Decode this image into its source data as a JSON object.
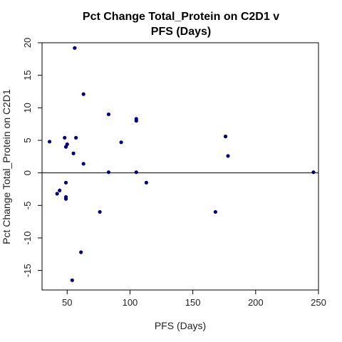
{
  "chart_data": {
    "type": "scatter",
    "title_lines": [
      "Pct Change Total_Protein on C2D1 v",
      "PFS (Days)"
    ],
    "xlabel": "PFS (Days)",
    "ylabel": "Pct Change Total_Protein on C2D1",
    "xlim": [
      30,
      250
    ],
    "ylim": [
      -18,
      20
    ],
    "x_ticks": [
      50,
      100,
      150,
      200,
      250
    ],
    "y_ticks": [
      -15,
      -10,
      -5,
      0,
      5,
      10,
      15,
      20
    ],
    "reference_line_y": 0,
    "point_color": "#000080",
    "points": [
      {
        "x": 36,
        "y": 4.8
      },
      {
        "x": 42,
        "y": -3.2
      },
      {
        "x": 44,
        "y": -2.7
      },
      {
        "x": 48,
        "y": 5.4
      },
      {
        "x": 49,
        "y": 4.0
      },
      {
        "x": 49,
        "y": -1.5
      },
      {
        "x": 49,
        "y": -3.7
      },
      {
        "x": 49,
        "y": -4.0
      },
      {
        "x": 50,
        "y": 4.4
      },
      {
        "x": 54,
        "y": -16.5
      },
      {
        "x": 55,
        "y": 3.0
      },
      {
        "x": 56,
        "y": 19.2
      },
      {
        "x": 57,
        "y": 5.4
      },
      {
        "x": 61,
        "y": -12.2
      },
      {
        "x": 63,
        "y": 12.1
      },
      {
        "x": 63,
        "y": 1.4
      },
      {
        "x": 76,
        "y": -6.0
      },
      {
        "x": 83,
        "y": 9.0
      },
      {
        "x": 83,
        "y": 0.1
      },
      {
        "x": 93,
        "y": 4.7
      },
      {
        "x": 105,
        "y": 8.3
      },
      {
        "x": 105,
        "y": 8.0
      },
      {
        "x": 105,
        "y": 0.1
      },
      {
        "x": 113,
        "y": -1.5
      },
      {
        "x": 168,
        "y": -6.0
      },
      {
        "x": 176,
        "y": 5.6
      },
      {
        "x": 178,
        "y": 2.6
      },
      {
        "x": 246,
        "y": 0.1
      }
    ]
  }
}
